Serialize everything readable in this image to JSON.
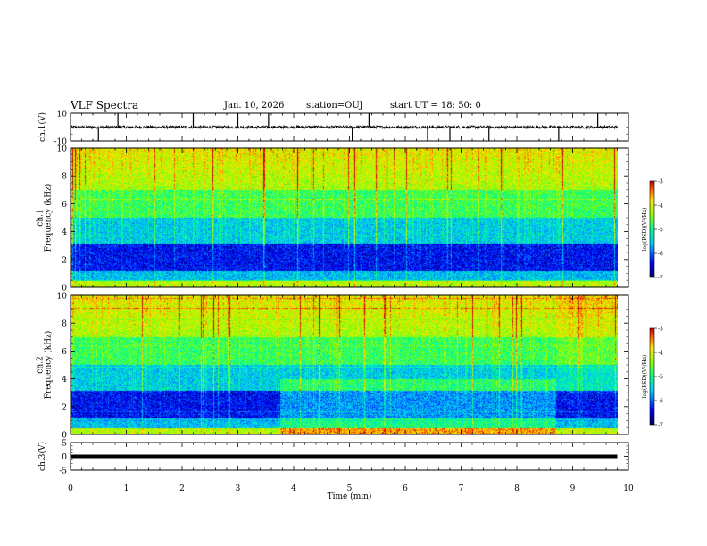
{
  "header": {
    "title": "VLF Spectra",
    "date": "Jan. 10, 2026",
    "station": "station=OUJ",
    "start": "start UT =  18: 50: 0"
  },
  "chart_data": [
    {
      "type": "line",
      "panel": "ch1-waveform",
      "ylabel": "ch.1(V)",
      "ylim": [
        -10,
        10
      ],
      "yticks": [
        "10",
        "-10"
      ],
      "baseline": 0,
      "noise_amplitude": 1.0,
      "spikes_x_min": [
        0.5,
        0.85,
        2.2,
        3.0,
        3.55,
        5.05,
        5.35,
        6.4,
        6.8,
        7.5,
        8.75,
        9.45
      ]
    },
    {
      "type": "heatmap",
      "panel": "ch1-spectrogram",
      "ylabel": "ch.1\nFrequency (kHz)",
      "xlim": [
        0,
        10
      ],
      "ylim": [
        0,
        10
      ],
      "yticks": [
        "0",
        "2",
        "4",
        "6",
        "8",
        "10"
      ],
      "colorbar": {
        "label": "log(PSD)(V²/Hz)",
        "range": [
          -7,
          -3
        ],
        "ticks": [
          "-3",
          "-4",
          "-5",
          "-6",
          "-7"
        ]
      },
      "data_extent_x_min": 9.8
    },
    {
      "type": "heatmap",
      "panel": "ch2-spectrogram",
      "ylabel": "ch.2\nFrequency (kHz)",
      "xlim": [
        0,
        10
      ],
      "ylim": [
        0,
        10
      ],
      "yticks": [
        "0",
        "2",
        "4",
        "6",
        "8",
        "10"
      ],
      "colorbar": {
        "label": "log(PSD)(V²/Hz)",
        "range": [
          -7,
          -3
        ],
        "ticks": [
          "-3",
          "-4",
          "-5",
          "-6",
          "-7"
        ]
      },
      "data_extent_x_min": 9.8,
      "regime_changes_x_min": [
        3.75,
        8.7
      ]
    },
    {
      "type": "line",
      "panel": "ch3-waveform",
      "ylabel": "ch.3(V)",
      "ylim": [
        -5,
        5
      ],
      "yticks": [
        "5",
        "0",
        "-5"
      ],
      "baseline": 0,
      "xlim": [
        0,
        10
      ],
      "xlabel": "Time (min)",
      "xticks": [
        "0",
        "1",
        "2",
        "3",
        "4",
        "5",
        "6",
        "7",
        "8",
        "9",
        "10"
      ]
    }
  ]
}
